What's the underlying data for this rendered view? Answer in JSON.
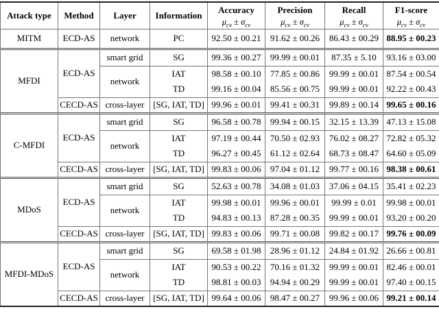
{
  "table": {
    "header": {
      "columns": [
        "Attack type",
        "Method",
        "Layer",
        "Information",
        "Accuracy",
        "Precision",
        "Recall",
        "F1-score"
      ],
      "metric_sub": {
        "mu": "μ",
        "sub": "cv",
        "pm": "±",
        "sigma": "σ"
      }
    },
    "sections": [
      {
        "attack": "MITM",
        "rows": [
          {
            "method": "ECD-AS",
            "method_span": 1,
            "layer": "network",
            "layer_span": 1,
            "info": "PC",
            "values": [
              "92.50 ± 00.21",
              "91.62 ± 00.26",
              "86.43 ± 00.29",
              "88.95 ± 00.23"
            ],
            "f1_bold": true
          }
        ]
      },
      {
        "attack": "MFDI",
        "rows": [
          {
            "method": "ECD-AS",
            "method_span": 3,
            "layer": "smart grid",
            "layer_span": 1,
            "info": "SG",
            "values": [
              "99.36 ± 00.27",
              "99.99 ± 00.01",
              "87.35 ± 5.10",
              "93.16 ± 03.00"
            ]
          },
          {
            "layer": "network",
            "layer_span": 2,
            "info": "IAT",
            "line_above": true,
            "values": [
              "98.58 ± 00.10",
              "77.85 ± 00.86",
              "99.99 ± 00.01",
              "87.54 ± 00.54"
            ]
          },
          {
            "info": "TD",
            "values": [
              "99.16 ± 00.04",
              "85.56 ± 00.75",
              "99.99 ± 00.01",
              "92.22 ± 00.43"
            ]
          },
          {
            "method": "CECD-AS",
            "method_span": 1,
            "layer": "cross-layer",
            "layer_span": 1,
            "info": "[SG, IAT, TD]",
            "line_above": true,
            "values": [
              "99.96 ± 00.01",
              "99.41 ± 00.31",
              "99.89 ± 00.14",
              "99.65 ± 00.16"
            ],
            "f1_bold": true
          }
        ]
      },
      {
        "attack": "C-MFDI",
        "rows": [
          {
            "method": "ECD-AS",
            "method_span": 3,
            "layer": "smart grid",
            "layer_span": 1,
            "info": "SG",
            "values": [
              "96.58 ± 00.78",
              "99.94 ± 00.15",
              "32.15 ± 13.39",
              "47.13 ± 15.08"
            ]
          },
          {
            "layer": "network",
            "layer_span": 2,
            "info": "IAT",
            "line_above": true,
            "values": [
              "97.19 ± 00.44",
              "70.50 ± 02.93",
              "76.02 ± 08.27",
              "72.82 ± 05.32"
            ]
          },
          {
            "info": "TD",
            "values": [
              "96.27 ± 00.45",
              "61.12 ± 02.64",
              "68.73 ± 08.47",
              "64.60 ± 05.09"
            ]
          },
          {
            "method": "CECD-AS",
            "method_span": 1,
            "layer": "cross-layer",
            "layer_span": 1,
            "info": "[SG, IAT, TD]",
            "line_above": true,
            "values": [
              "99.83 ± 00.06",
              "97.04 ± 01.12",
              "99.77 ± 00.16",
              "98.38 ± 00.61"
            ],
            "f1_bold": true
          }
        ]
      },
      {
        "attack": "MDoS",
        "rows": [
          {
            "method": "ECD-AS",
            "method_span": 3,
            "layer": "smart grid",
            "layer_span": 1,
            "info": "SG",
            "values": [
              "52.63 ± 00.78",
              "34.08 ± 01.03",
              "37.06 ± 04.15",
              "35.41 ± 02.23"
            ]
          },
          {
            "layer": "network",
            "layer_span": 2,
            "info": "IAT",
            "line_above": true,
            "values": [
              "99.98 ± 00.01",
              "99.96 ± 00.01",
              "99.99 ± 0.01",
              "99.98 ± 00.01"
            ]
          },
          {
            "info": "TD",
            "values": [
              "94.83 ± 00.13",
              "87.28 ± 00.35",
              "99.99 ± 00.01",
              "93.20 ± 00.20"
            ]
          },
          {
            "method": "CECD-AS",
            "method_span": 1,
            "layer": "cross-layer",
            "layer_span": 1,
            "info": "[SG, IAT, TD]",
            "line_above": true,
            "values": [
              "99.83 ± 00.06",
              "99.71 ± 00.08",
              "99.82 ± 00.17",
              "99.76 ± 00.09"
            ],
            "f1_bold": true
          }
        ]
      },
      {
        "attack": "MFDI-MDoS",
        "rows": [
          {
            "method": "ECD-AS",
            "method_span": 3,
            "layer": "smart grid",
            "layer_span": 1,
            "info": "SG",
            "values": [
              "69.58 ± 01.98",
              "28.96 ± 01.12",
              "24.84 ± 01.92",
              "26.66 ± 00.81"
            ]
          },
          {
            "layer": "network",
            "layer_span": 2,
            "info": "IAT",
            "line_above": true,
            "values": [
              "90.53 ± 00.22",
              "70.16 ± 01.32",
              "99.99 ± 00.01",
              "82.46 ± 00.01"
            ]
          },
          {
            "info": "TD",
            "values": [
              "98.81 ± 00.03",
              "94.94 ± 00.29",
              "99.99 ± 00.01",
              "97.40 ± 00.15"
            ]
          },
          {
            "method": "CECD-AS",
            "method_span": 1,
            "layer": "cross-layer",
            "layer_span": 1,
            "info": "[SG, IAT, TD]",
            "line_above": true,
            "values": [
              "99.64 ± 00.06",
              "98.47 ± 00.27",
              "99.96 ± 00.06",
              "99.21 ± 00.14"
            ],
            "f1_bold": true
          }
        ]
      }
    ],
    "colors": {
      "border": "#757575",
      "rule": "#1f1f1f",
      "text": "#000000",
      "background": "#ffffff"
    }
  }
}
